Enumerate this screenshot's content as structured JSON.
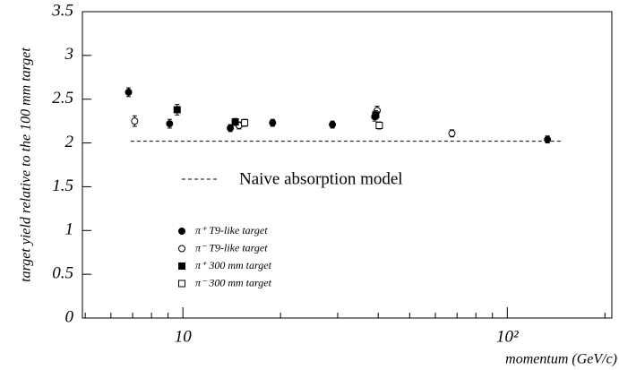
{
  "chart_data": {
    "type": "scatter",
    "ylabel": "target yield relative to the 100 mm target",
    "xlabel": "momentum (GeV/c)",
    "xscale": "log",
    "xlim": [
      4.9,
      210
    ],
    "ylim": [
      0,
      3.5
    ],
    "xticks": [
      10,
      {
        "value": 100,
        "label": "10²"
      }
    ],
    "xminorticks": [
      5,
      6,
      7,
      8,
      9,
      20,
      30,
      40,
      50,
      60,
      70,
      80,
      90,
      200
    ],
    "yticks": [
      0,
      0.5,
      1,
      1.5,
      2,
      2.5,
      3,
      3.5
    ],
    "series": [
      {
        "name": "π⁺ T9-like target",
        "marker": "circle",
        "filled": true,
        "color": "#000",
        "x": [
          6.8,
          9.1,
          14.0,
          18.9,
          28.9,
          39,
          133
        ],
        "values": [
          2.58,
          2.22,
          2.17,
          2.23,
          2.21,
          2.3,
          2.04
        ],
        "errors": [
          0.05,
          0.05,
          0.04,
          0.04,
          0.04,
          0.05,
          0.04
        ]
      },
      {
        "name": "π⁻ T9-like target",
        "marker": "circle",
        "filled": false,
        "color": "#000",
        "x": [
          7.1,
          14.9,
          39.7,
          67.5
        ],
        "values": [
          2.25,
          2.2,
          2.37,
          2.11
        ],
        "errors": [
          0.06,
          0.04,
          0.05,
          0.04
        ]
      },
      {
        "name": "π⁺ 300 mm target",
        "marker": "square",
        "filled": true,
        "color": "#000",
        "x": [
          9.6,
          14.5,
          39.3
        ],
        "values": [
          2.38,
          2.24,
          2.32
        ],
        "errors": [
          0.06,
          0.04,
          0.05
        ]
      },
      {
        "name": "π⁻ 300 mm target",
        "marker": "square",
        "filled": false,
        "color": "#000",
        "x": [
          15.5,
          40.3
        ],
        "values": [
          2.23,
          2.2
        ],
        "errors": [
          0.04,
          0.04
        ]
      }
    ],
    "model": {
      "name": "Naive absorption model",
      "x": [
        6.9,
        147
      ],
      "values": [
        2.02,
        2.02
      ],
      "dashed": true
    }
  }
}
